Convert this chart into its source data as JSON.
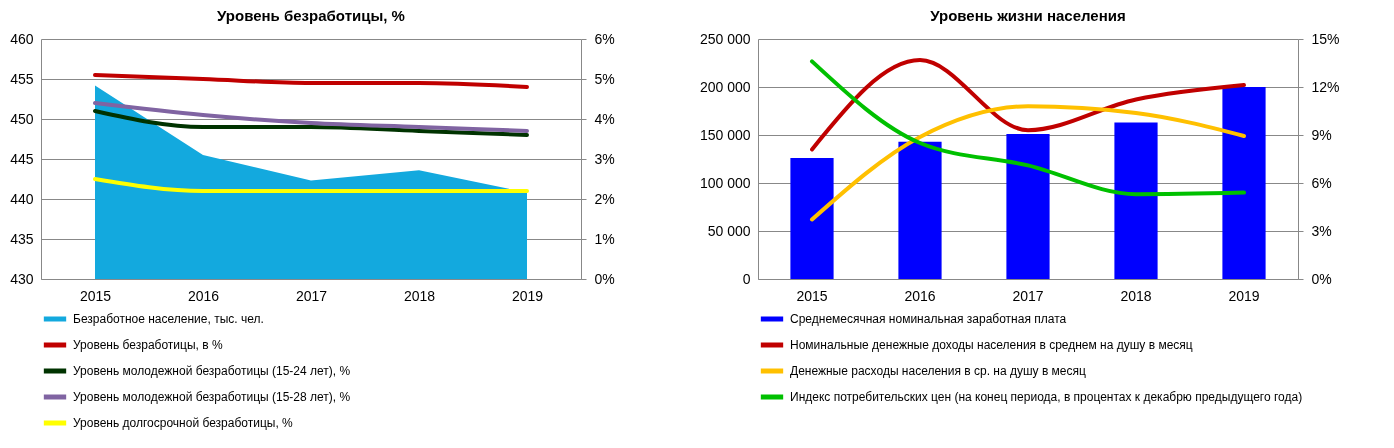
{
  "chart_data": [
    {
      "type": "line",
      "title": "Уровень безработицы, %",
      "categories": [
        "2015",
        "2016",
        "2017",
        "2018",
        "2019"
      ],
      "series": [
        {
          "name": "Безработное население, тыс. чел.",
          "type": "area",
          "color": "#13a9de",
          "values": [
            454.2,
            445.5,
            442.3,
            443.6,
            440.8
          ]
        },
        {
          "name": "Уровень безработицы, в %",
          "color": "#c00000",
          "axis": "y2",
          "values": [
            5.1,
            5.0,
            4.9,
            4.9,
            4.8
          ]
        },
        {
          "name": "Уровень молодежной безработицы (15-24  лет), %",
          "color": "#003300",
          "axis": "y2",
          "values": [
            4.2,
            3.8,
            3.8,
            3.7,
            3.6
          ]
        },
        {
          "name": "Уровень молодежной безработицы (15-28 лет), %",
          "color": "#8064a2",
          "axis": "y2",
          "values": [
            4.4,
            4.1,
            3.9,
            3.8,
            3.7
          ]
        },
        {
          "name": "Уровень долгосрочной безработицы, %",
          "color": "#ffff00",
          "axis": "y2",
          "values": [
            2.5,
            2.2,
            2.2,
            2.2,
            2.2
          ]
        }
      ],
      "ylim": [
        430,
        460
      ],
      "yticks": [
        430,
        435,
        440,
        445,
        450,
        455,
        460
      ],
      "y2lim": [
        0,
        6
      ],
      "y2ticks": [
        {
          "value": 0,
          "label": "0%"
        },
        {
          "value": 1,
          "label": "1%"
        },
        {
          "value": 2,
          "label": "2%"
        },
        {
          "value": 3,
          "label": "3%"
        },
        {
          "value": 4,
          "label": "4%"
        },
        {
          "value": 5,
          "label": "5%"
        },
        {
          "value": 6,
          "label": "6%"
        }
      ],
      "grid": "y",
      "legend": "bottom"
    },
    {
      "type": "bar",
      "title": "Уровень жизни населения",
      "categories": [
        "2015",
        "2016",
        "2017",
        "2018",
        "2019"
      ],
      "series": [
        {
          "name": "Среднемесячная номинальная заработная плата",
          "color": "#0000ff",
          "values": [
            126000,
            143000,
            151000,
            163000,
            200000
          ]
        },
        {
          "name": "Номинальные денежные доходы населения в среднем на душу в месяц",
          "type": "line",
          "color": "#c00000",
          "values": [
            135000,
            228000,
            155000,
            187000,
            202000
          ]
        },
        {
          "name": "Денежные расходы населения в ср. на душу в месяц",
          "type": "line",
          "color": "#ffc000",
          "values": [
            62000,
            148000,
            180000,
            173000,
            149000
          ]
        },
        {
          "name": " Индекс потребительских цен (на конец периода, в процентах к декабрю предыдущего года)",
          "type": "line",
          "color": "#00c000",
          "axis": "y2",
          "values": [
            13.6,
            8.5,
            7.1,
            5.3,
            5.4
          ]
        }
      ],
      "ylim": [
        0,
        250000
      ],
      "yticks": [
        0,
        {
          "value": 50000,
          "label": "50 000"
        },
        {
          "value": 100000,
          "label": "100 000"
        },
        {
          "value": 150000,
          "label": "150 000"
        },
        {
          "value": 200000,
          "label": "200 000"
        },
        {
          "value": 250000,
          "label": "250 000"
        }
      ],
      "y2lim": [
        0,
        15
      ],
      "y2ticks": [
        {
          "value": 0,
          "label": "0%"
        },
        {
          "value": 3,
          "label": "3%"
        },
        {
          "value": 6,
          "label": "6%"
        },
        {
          "value": 9,
          "label": "9%"
        },
        {
          "value": 12,
          "label": "12%"
        },
        {
          "value": 15,
          "label": "15%"
        }
      ],
      "grid": "y",
      "legend": "bottom"
    }
  ]
}
